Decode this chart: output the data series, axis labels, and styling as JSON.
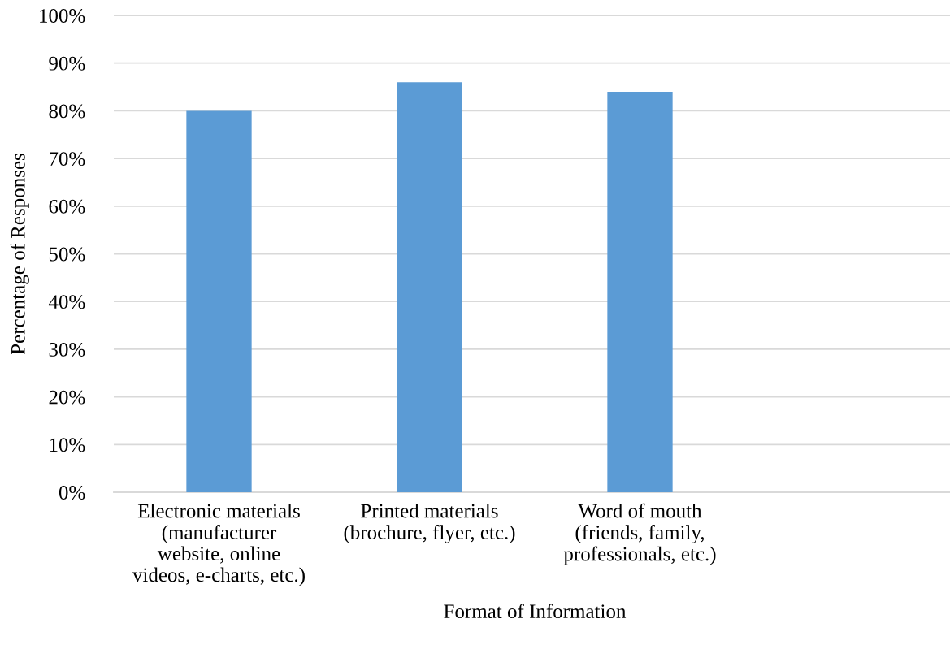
{
  "chart_data": {
    "type": "bar",
    "xlabel": "Format of Information",
    "ylabel": "Percentage of Responses",
    "categories": [
      "Electronic materials\n(manufacturer\nwebsite, online\nvideos, e-charts, etc.)",
      "Printed materials\n(brochure, flyer, etc.)",
      "Word of mouth\n(friends, family,\nprofessionals, etc.)",
      null
    ],
    "values": [
      80,
      86,
      84,
      null
    ],
    "color": "#5b9bd5",
    "ylim": [
      0,
      100
    ],
    "yticks": [
      {
        "value": 0,
        "label": "0%"
      },
      {
        "value": 10,
        "label": "10%"
      },
      {
        "value": 20,
        "label": "20%"
      },
      {
        "value": 30,
        "label": "30%"
      },
      {
        "value": 40,
        "label": "40%"
      },
      {
        "value": 50,
        "label": "50%"
      },
      {
        "value": 60,
        "label": "60%"
      },
      {
        "value": 70,
        "label": "70%"
      },
      {
        "value": 80,
        "label": "80%"
      },
      {
        "value": 90,
        "label": "90%"
      },
      {
        "value": 100,
        "label": "100%"
      }
    ],
    "grid": "y"
  }
}
